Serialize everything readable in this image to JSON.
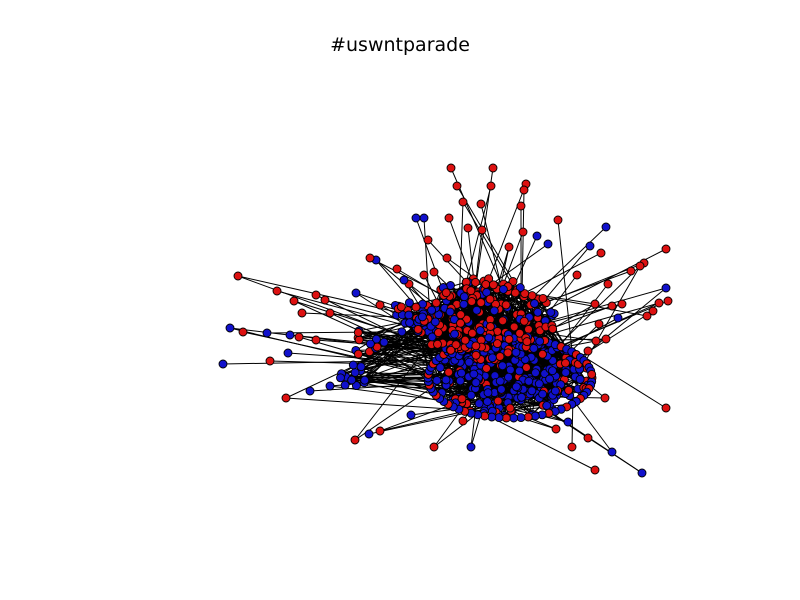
{
  "figure": {
    "title": "#uswntparade"
  },
  "graph": {
    "layout": "force-directed",
    "node_colors": {
      "group_a": "#dd1111",
      "group_b": "#1111cc"
    },
    "edge_color": "#000000",
    "node_outline": "#000000"
  }
}
